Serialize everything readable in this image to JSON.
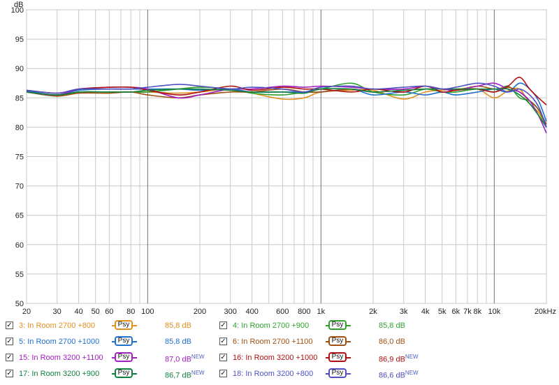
{
  "chart_data": {
    "type": "line",
    "title": "",
    "xlabel": "",
    "ylabel": "dB",
    "xscale": "log",
    "xlim": [
      20,
      20000
    ],
    "ylim": [
      50,
      100
    ],
    "grid": true,
    "legend_placement": "bottom",
    "x_ticks": [
      {
        "v": 20,
        "label": "20"
      },
      {
        "v": 30,
        "label": "30"
      },
      {
        "v": 40,
        "label": "40"
      },
      {
        "v": 50,
        "label": "50"
      },
      {
        "v": 60,
        "label": "60"
      },
      {
        "v": 80,
        "label": "80"
      },
      {
        "v": 100,
        "label": "100"
      },
      {
        "v": 200,
        "label": "200"
      },
      {
        "v": 300,
        "label": "300"
      },
      {
        "v": 400,
        "label": "400"
      },
      {
        "v": 600,
        "label": "600"
      },
      {
        "v": 800,
        "label": "800"
      },
      {
        "v": 1000,
        "label": "1k"
      },
      {
        "v": 2000,
        "label": "2k"
      },
      {
        "v": 3000,
        "label": "3k"
      },
      {
        "v": 4000,
        "label": "4k"
      },
      {
        "v": 5000,
        "label": "5k"
      },
      {
        "v": 6000,
        "label": "6k"
      },
      {
        "v": 7000,
        "label": "7k"
      },
      {
        "v": 8000,
        "label": "8k"
      },
      {
        "v": 10000,
        "label": "10k"
      },
      {
        "v": 20000,
        "label": "20kHz"
      }
    ],
    "y_ticks": [
      100,
      95,
      90,
      85,
      80,
      75,
      70,
      65,
      60,
      55,
      50
    ],
    "x": [
      20,
      30,
      40,
      60,
      80,
      100,
      150,
      200,
      300,
      400,
      600,
      800,
      1000,
      1500,
      2000,
      3000,
      4000,
      5000,
      6000,
      8000,
      10000,
      12000,
      14000,
      16000,
      18000,
      20000
    ],
    "series": [
      {
        "name": "3: In Room 2700 +800",
        "color": "#e09020",
        "checked": true,
        "value": "85,8 dB",
        "isnew": false,
        "values": [
          86.0,
          85.5,
          86.0,
          86.0,
          86.0,
          86.0,
          85.8,
          86.0,
          86.5,
          85.8,
          84.8,
          85.0,
          86.0,
          86.3,
          86.3,
          84.8,
          86.0,
          86.3,
          86.5,
          86.5,
          85.0,
          86.2,
          86.5,
          84.0,
          82.5,
          80.0
        ]
      },
      {
        "name": "4: In Room 2700 +900",
        "color": "#30a030",
        "checked": true,
        "value": "85,8 dB",
        "isnew": false,
        "values": [
          86.0,
          85.3,
          86.0,
          86.0,
          86.0,
          86.0,
          86.5,
          86.8,
          86.5,
          85.8,
          85.5,
          86.0,
          86.5,
          87.5,
          86.0,
          85.5,
          86.5,
          86.0,
          86.0,
          86.5,
          86.0,
          87.0,
          85.0,
          84.5,
          83.0,
          80.0
        ]
      },
      {
        "name": "5: In Room 2700 +1000",
        "color": "#2070d0",
        "checked": true,
        "value": "85,8 dB",
        "isnew": false,
        "values": [
          86.2,
          85.5,
          86.3,
          86.5,
          86.5,
          86.5,
          86.5,
          86.3,
          86.5,
          86.0,
          86.0,
          86.0,
          86.0,
          86.5,
          85.5,
          86.0,
          85.5,
          86.0,
          85.5,
          86.0,
          86.5,
          86.0,
          87.5,
          86.5,
          84.5,
          81.0
        ]
      },
      {
        "name": "6: In Room 2700 +1100",
        "color": "#a05010",
        "checked": true,
        "value": "86,0 dB",
        "isnew": false,
        "values": [
          86.0,
          85.3,
          85.8,
          85.8,
          86.0,
          85.5,
          85.0,
          85.5,
          86.0,
          86.0,
          86.5,
          86.0,
          86.0,
          86.5,
          86.0,
          86.3,
          86.5,
          86.5,
          86.3,
          87.0,
          86.5,
          86.8,
          86.0,
          84.5,
          83.0,
          80.5
        ]
      },
      {
        "name": "15: In Room 3200 +1100",
        "color": "#a020c0",
        "checked": true,
        "value": "87,0 dB",
        "isnew": true,
        "values": [
          86.0,
          85.5,
          86.5,
          86.8,
          86.8,
          86.5,
          85.0,
          85.5,
          86.5,
          86.5,
          87.0,
          86.8,
          87.0,
          86.8,
          86.5,
          86.5,
          87.0,
          86.5,
          86.3,
          87.0,
          87.5,
          86.5,
          86.0,
          84.5,
          82.0,
          79.0
        ]
      },
      {
        "name": "16: In Room 3200 +1000",
        "color": "#b01010",
        "checked": true,
        "value": "86,9 dB",
        "isnew": true,
        "values": [
          86.3,
          85.8,
          86.5,
          86.8,
          86.8,
          86.3,
          85.5,
          86.0,
          87.0,
          86.3,
          86.8,
          86.5,
          86.5,
          86.0,
          86.5,
          86.0,
          87.0,
          86.0,
          86.3,
          86.5,
          86.0,
          87.0,
          88.5,
          86.5,
          85.0,
          83.8
        ]
      },
      {
        "name": "17: In Room 3200 +900",
        "color": "#108040",
        "checked": true,
        "value": "86,7 dB",
        "isnew": true,
        "values": [
          86.0,
          85.5,
          86.0,
          86.0,
          86.0,
          86.3,
          86.5,
          86.5,
          86.3,
          86.0,
          86.0,
          85.8,
          86.5,
          86.5,
          86.0,
          86.3,
          86.5,
          86.5,
          86.5,
          86.5,
          86.5,
          86.5,
          85.5,
          84.0,
          82.0,
          80.0
        ]
      },
      {
        "name": "18: In Room 3200 +800",
        "color": "#5050c0",
        "checked": true,
        "value": "86,6 dB",
        "isnew": true,
        "values": [
          86.3,
          85.8,
          86.5,
          86.5,
          86.5,
          86.8,
          87.3,
          87.0,
          86.5,
          86.8,
          86.5,
          86.0,
          86.8,
          87.0,
          86.5,
          86.8,
          87.0,
          86.5,
          86.8,
          87.5,
          87.0,
          86.0,
          86.5,
          85.5,
          83.5,
          80.0
        ]
      }
    ]
  },
  "legend": {
    "psy_label": "Psy",
    "check_glyph": "✓",
    "new_tag": "NEW"
  }
}
